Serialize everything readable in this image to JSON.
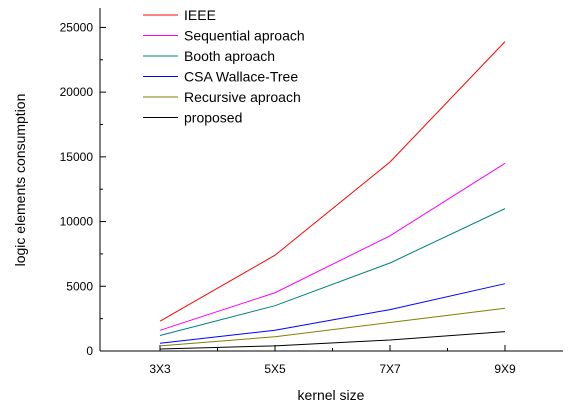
{
  "chart_data": {
    "type": "line",
    "xlabel": "kernel size",
    "ylabel": "logic elements consumption",
    "categories": [
      "3X3",
      "5X5",
      "7X7",
      "9X9"
    ],
    "ylim": [
      0,
      26500
    ],
    "yticks": [
      0,
      5000,
      10000,
      15000,
      20000,
      25000
    ],
    "grid": false,
    "legend_position": "top-left",
    "series": [
      {
        "name": "IEEE",
        "color": "#ff0000",
        "values": [
          2300,
          7400,
          14600,
          23900
        ]
      },
      {
        "name": "Sequential aproach",
        "color": "#ff00ff",
        "values": [
          1600,
          4500,
          8900,
          14500
        ]
      },
      {
        "name": "Booth aproach",
        "color": "#008080",
        "values": [
          1200,
          3500,
          6800,
          11000
        ]
      },
      {
        "name": "CSA Wallace-Tree",
        "color": "#0000ff",
        "values": [
          600,
          1600,
          3200,
          5200
        ]
      },
      {
        "name": "Recursive aproach",
        "color": "#808000",
        "values": [
          400,
          1100,
          2200,
          3300
        ]
      },
      {
        "name": "proposed",
        "color": "#000000",
        "values": [
          150,
          400,
          850,
          1500
        ]
      }
    ]
  }
}
